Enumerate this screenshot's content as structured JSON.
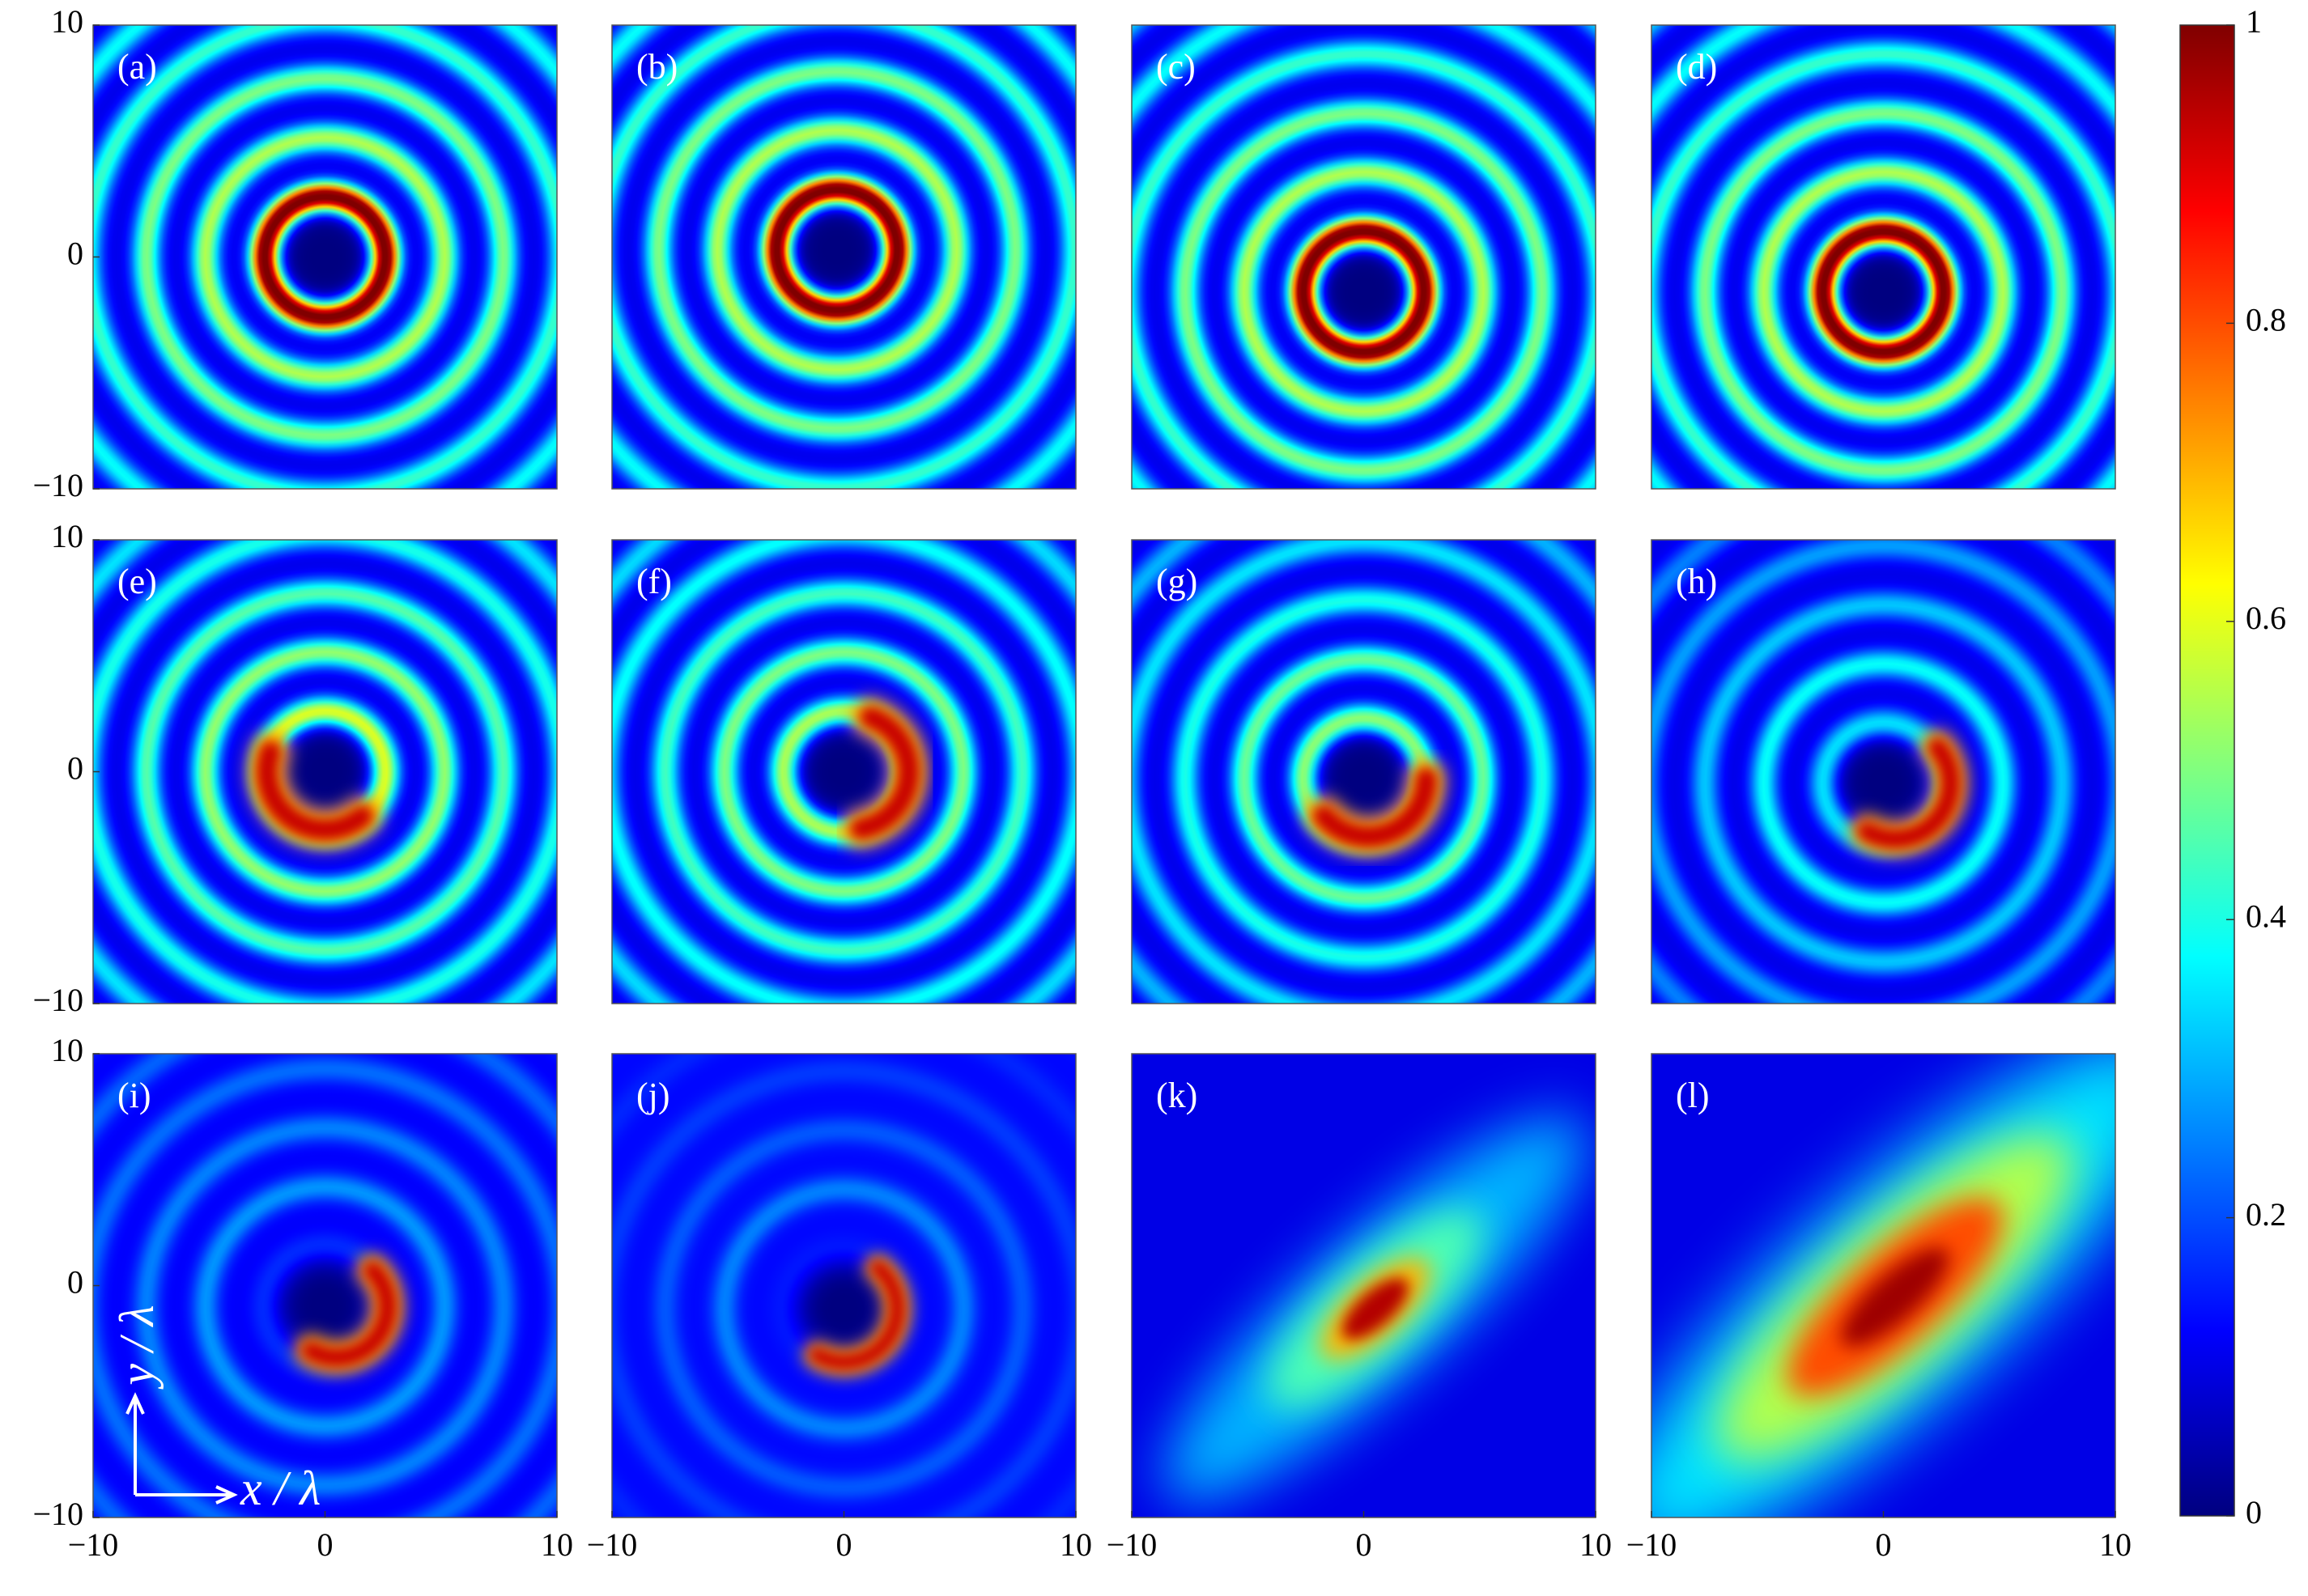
{
  "chart_data": {
    "type": "heatmap",
    "panels": [
      "(a)",
      "(b)",
      "(c)",
      "(d)",
      "(e)",
      "(f)",
      "(g)",
      "(h)",
      "(i)",
      "(j)",
      "(k)",
      "(l)"
    ],
    "xlabel": "x / λ",
    "ylabel": "y / λ",
    "xlim": [
      -10,
      10
    ],
    "ylim": [
      -10,
      10
    ],
    "xticks": [
      {
        "value": -10,
        "label": "−10"
      },
      0,
      10
    ],
    "yticks": [
      {
        "value": -10,
        "label": "−10"
      },
      0,
      10
    ],
    "colormap": "jet",
    "clim": [
      0,
      1
    ],
    "cticks": [
      0,
      0.2,
      0.4,
      0.6,
      0.8,
      1
    ]
  }
}
